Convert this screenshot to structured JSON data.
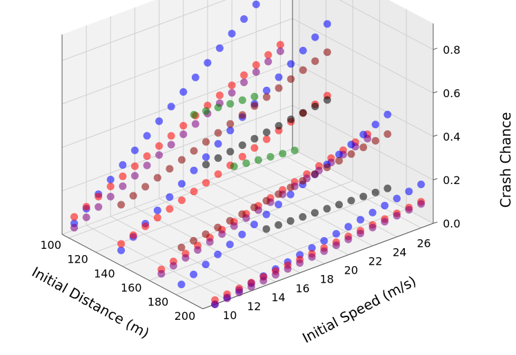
{
  "chart_data": {
    "type": "scatter",
    "projection": "3d",
    "title": "",
    "xlabel": "Initial Distance (m)",
    "ylabel": "Initial Speed (m/s)",
    "zlabel": "Crash Chance",
    "x_ticks": [
      "100",
      "120",
      "140",
      "160",
      "180",
      "200"
    ],
    "y_ticks": [
      "10",
      "12",
      "14",
      "16",
      "18",
      "20",
      "22",
      "24",
      "26"
    ],
    "z_ticks": [
      "0.0",
      "0.2",
      "0.4",
      "0.6",
      "0.8"
    ],
    "xlim": [
      90,
      200
    ],
    "ylim": [
      8,
      27
    ],
    "zlim": [
      0,
      0.92
    ],
    "grid": true,
    "point_alpha": 0.55,
    "series": [
      {
        "color": "#0000ff",
        "points": [
          {
            "distance": 95,
            "speeds": [
              9,
              26
            ],
            "crash": [
              0.03,
              0.82
            ]
          },
          {
            "distance": 130,
            "speeds": [
              9,
              26
            ],
            "crash": [
              0.02,
              0.71
            ]
          },
          {
            "distance": 175,
            "speeds": [
              9,
              26
            ],
            "crash": [
              0.01,
              0.44
            ]
          },
          {
            "distance": 200,
            "speeds": [
              9,
              26
            ],
            "crash": [
              0.0,
              0.2
            ]
          }
        ]
      },
      {
        "color": "#ff0000",
        "points": [
          {
            "distance": 95,
            "speeds": [
              9,
              26
            ],
            "crash": [
              0.06,
              0.5
            ]
          },
          {
            "distance": 130,
            "speeds": [
              9,
              26
            ],
            "crash": [
              0.05,
              0.38
            ]
          },
          {
            "distance": 160,
            "speeds": [
              9,
              26
            ],
            "crash": [
              0.03,
              0.3
            ]
          },
          {
            "distance": 200,
            "speeds": [
              9,
              26
            ],
            "crash": [
              0.02,
              0.12
            ]
          }
        ]
      },
      {
        "color": "#800080",
        "points": [
          {
            "distance": 95,
            "speeds": [
              9,
              26
            ],
            "crash": [
              0.01,
              0.47
            ]
          },
          {
            "distance": 160,
            "speeds": [
              9,
              26
            ],
            "crash": [
              0.01,
              0.28
            ]
          },
          {
            "distance": 200,
            "speeds": [
              9,
              26
            ],
            "crash": [
              0.0,
              0.11
            ]
          }
        ]
      },
      {
        "color": "#8b0000",
        "points": [
          {
            "distance": 130,
            "speeds": [
              9,
              26
            ],
            "crash": [
              0.23,
              0.58
            ]
          },
          {
            "distance": 175,
            "speeds": [
              9,
              26
            ],
            "crash": [
              0.18,
              0.35
            ]
          }
        ]
      },
      {
        "color": "#000000",
        "points": [
          {
            "distance": 130,
            "speeds": [
              16,
              26
            ],
            "crash": [
              0.27,
              0.36
            ]
          },
          {
            "distance": 175,
            "speeds": [
              16,
              26
            ],
            "crash": [
              0.12,
              0.1
            ]
          }
        ]
      },
      {
        "color": "#008000",
        "points": [
          {
            "distance": 130,
            "speeds": [
              15,
              20
            ],
            "crash": [
              0.52,
              0.5
            ]
          },
          {
            "distance": 160,
            "speeds": [
              15,
              20
            ],
            "crash": [
              0.38,
              0.35
            ]
          }
        ]
      }
    ]
  }
}
